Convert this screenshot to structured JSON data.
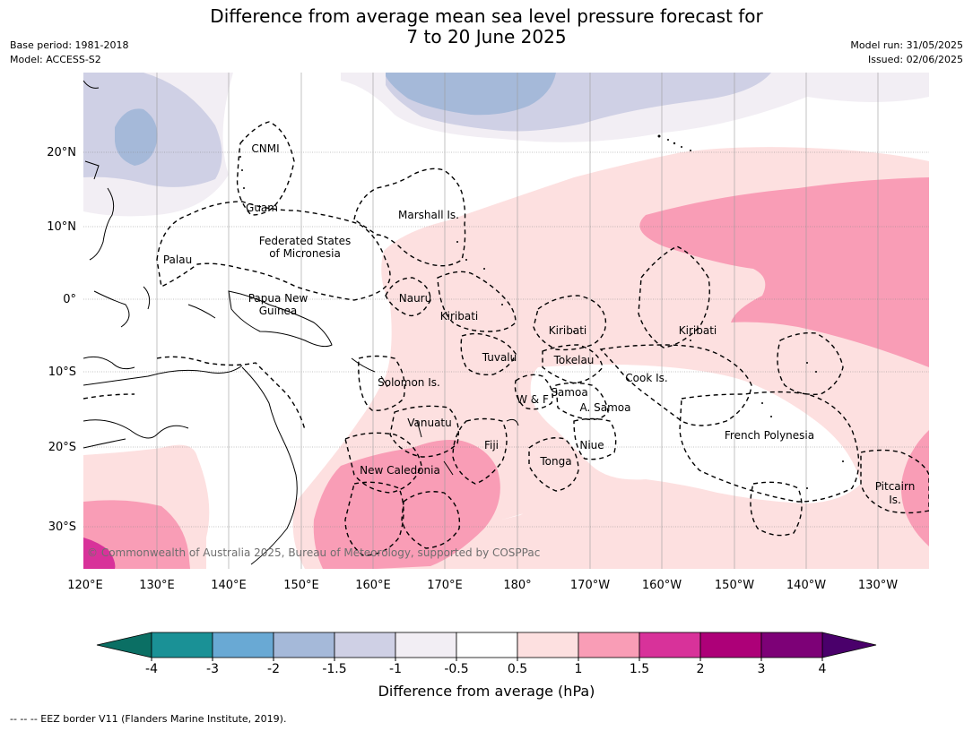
{
  "title_line1": "Difference from average mean sea level pressure forecast for",
  "title_line2": "7 to 20 June 2025",
  "base_period": "Base period: 1981-2018",
  "model": "Model: ACCESS-S2",
  "model_run": "Model run: 31/05/2025",
  "issued": "Issued: 02/06/2025",
  "copyright": "© Commonwealth of Australia 2025, Bureau of Meteorology, supported by COSPPac",
  "lon_labels": [
    "120°E",
    "130°E",
    "140°E",
    "150°E",
    "160°E",
    "170°E",
    "180°",
    "170°W",
    "160°W",
    "150°W",
    "140°W",
    "130°W"
  ],
  "lat_labels": [
    "20°N",
    "10°N",
    "0°",
    "10°S",
    "20°S",
    "30°S"
  ],
  "regions": [
    "CNMI",
    "Guam",
    "Marshall Is.",
    "Federated States",
    "of Micronesia",
    "Palau",
    "Papua New",
    "Guinea",
    "Nauru",
    "Kiribati",
    "Tuvalu",
    "Kiribati",
    "Kiribati",
    "Tokelau",
    "Solomon Is.",
    "Cook Is.",
    "W & F",
    "Samoa",
    "A. Samoa",
    "Vanuatu",
    "Fiji",
    "Niue",
    "Tonga",
    "French Polynesia",
    "New Caledonia",
    "Pitcairn",
    "Is."
  ],
  "colorbar": {
    "ticks": [
      "-4",
      "-3",
      "-2",
      "-1.5",
      "-1",
      "-0.5",
      "0.5",
      "1",
      "1.5",
      "2",
      "3",
      "4"
    ],
    "colors": [
      "#1a9196",
      "#69a9d4",
      "#a5b9d9",
      "#cfd0e5",
      "#f2eef4",
      "#ffffff",
      "#fde0e0",
      "#f99db6",
      "#d8329a",
      "#ad0078",
      "#7d0177"
    ],
    "low_color": "#0b6f64",
    "high_color": "#4a006b",
    "label": "Difference from average (hPa)"
  },
  "footer": "--  --  -- EEZ border V11 (Flanders Marine Institute, 2019)."
}
